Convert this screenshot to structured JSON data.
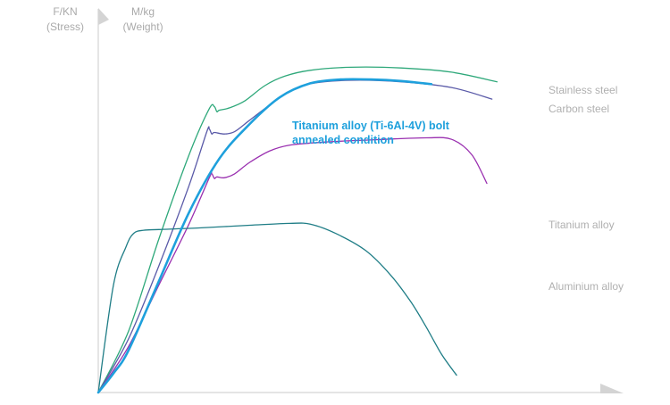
{
  "chart_data": {
    "type": "line",
    "title": "",
    "y_axis_labels": [
      {
        "line1": "F/KN",
        "line2": "(Stress)"
      },
      {
        "line1": "M/kg",
        "line2": "(Weight)"
      }
    ],
    "xlim": [
      0,
      100
    ],
    "ylim": [
      0,
      100
    ],
    "grid": false,
    "legend_placement": "right",
    "annotation": {
      "line1": "Titanium alloy (Ti-6Al-4V) bolt",
      "line2": "annealed condition",
      "color": "#1ea0dc"
    },
    "series": [
      {
        "name": "Stainless steel",
        "color": "#2ea87a",
        "x": [
          0,
          6,
          12,
          18,
          22,
          23,
          23.5,
          24,
          26,
          29,
          33,
          37,
          42,
          50,
          60,
          70,
          79
        ],
        "y": [
          0,
          16,
          40,
          62,
          74,
          74.5,
          73.2,
          73.6,
          74.2,
          76,
          80,
          82.5,
          84,
          84.8,
          84.6,
          83.5,
          81
        ]
      },
      {
        "name": "Carbon steel",
        "color": "#5a5aa8",
        "x": [
          0,
          6,
          12,
          18,
          21.5,
          22,
          22.5,
          23,
          25,
          27,
          30,
          34,
          38,
          42,
          50,
          60,
          70,
          78
        ],
        "y": [
          0,
          14,
          33,
          54,
          68,
          68.7,
          67.4,
          67.8,
          67.4,
          68,
          71,
          75,
          78.5,
          80.5,
          81.4,
          81,
          79.5,
          76.5
        ]
      },
      {
        "name": "Titanium alloy",
        "color": "#9a30b0",
        "x": [
          0,
          6,
          12,
          18,
          22,
          22.5,
          23,
          23.5,
          25,
          27,
          30,
          34,
          38,
          45,
          55,
          65,
          70,
          74,
          77
        ],
        "y": [
          0,
          12,
          28,
          44,
          56,
          57,
          55.8,
          56.2,
          56,
          57,
          60,
          63,
          64.5,
          65.3,
          65.9,
          66.4,
          66,
          62,
          54.5
        ]
      },
      {
        "name": "Aluminium alloy",
        "color": "#1f7d86",
        "x": [
          0,
          3,
          5.5,
          7,
          9,
          12,
          20,
          30,
          38,
          42,
          47,
          53,
          58,
          62,
          65,
          68,
          71
        ],
        "y": [
          0,
          28,
          38,
          41.5,
          42.3,
          42.5,
          42.9,
          43.6,
          44.1,
          43.9,
          41.5,
          37,
          30.5,
          23.5,
          17,
          10,
          4.5
        ]
      },
      {
        "name": "",
        "color": "#1ea0dc",
        "x": [
          0,
          3,
          6,
          12,
          18,
          24,
          30,
          36,
          42,
          48,
          54,
          60,
          66
        ],
        "y": [
          0,
          5,
          11,
          29,
          47,
          61,
          70,
          77,
          80.6,
          81.6,
          81.6,
          81.2,
          80.4
        ]
      }
    ]
  }
}
